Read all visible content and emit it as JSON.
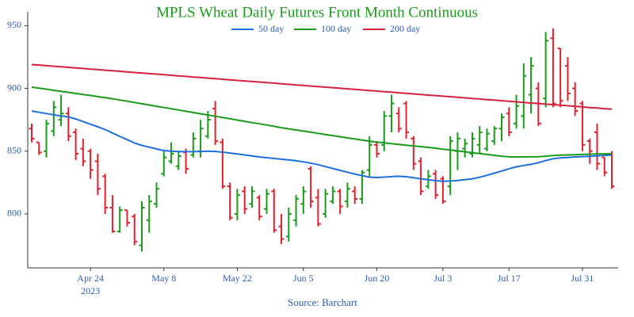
{
  "chart_data": {
    "type": "ohlc",
    "title": "MPLS Wheat Daily Futures Front Month Continuous",
    "source": "Source: Barchart",
    "year_label": "2023",
    "categories": [
      "Apr 12",
      "Apr 13",
      "Apr 14",
      "Apr 17",
      "Apr 18",
      "Apr 19",
      "Apr 20",
      "Apr 21",
      "Apr 24",
      "Apr 25",
      "Apr 26",
      "Apr 27",
      "Apr 28",
      "May 1",
      "May 2",
      "May 3",
      "May 4",
      "May 5",
      "May 8",
      "May 9",
      "May 10",
      "May 11",
      "May 12",
      "May 15",
      "May 16",
      "May 17",
      "May 18",
      "May 19",
      "May 22",
      "May 23",
      "May 24",
      "May 25",
      "May 26",
      "May 30",
      "May 31",
      "Jun 1",
      "Jun 2",
      "Jun 5",
      "Jun 6",
      "Jun 7",
      "Jun 8",
      "Jun 9",
      "Jun 12",
      "Jun 13",
      "Jun 14",
      "Jun 15",
      "Jun 16",
      "Jun 20",
      "Jun 21",
      "Jun 22",
      "Jun 23",
      "Jun 26",
      "Jun 27",
      "Jun 28",
      "Jun 29",
      "Jun 30",
      "Jul 3",
      "Jul 5",
      "Jul 6",
      "Jul 7",
      "Jul 10",
      "Jul 11",
      "Jul 12",
      "Jul 13",
      "Jul 14",
      "Jul 17",
      "Jul 18",
      "Jul 19",
      "Jul 20",
      "Jul 21",
      "Jul 24",
      "Jul 25",
      "Jul 26",
      "Jul 27",
      "Jul 28",
      "Jul 31",
      "Aug 1",
      "Aug 2",
      "Aug 3",
      "Aug 4"
    ],
    "xticks": [
      8,
      18,
      28,
      37,
      47,
      56,
      65,
      75
    ],
    "open": [
      868,
      857,
      850,
      866,
      875,
      880,
      865,
      852,
      850,
      842,
      830,
      805,
      786,
      803,
      798,
      775,
      795,
      808,
      832,
      842,
      838,
      849,
      847,
      850,
      862,
      884,
      857,
      822,
      800,
      818,
      808,
      813,
      804,
      818,
      790,
      782,
      795,
      808,
      836,
      813,
      800,
      810,
      818,
      810,
      818,
      812,
      835,
      855,
      855,
      878,
      880,
      888,
      860,
      842,
      822,
      832,
      828,
      822,
      850,
      852,
      848,
      855,
      852,
      858,
      868,
      880,
      872,
      878,
      895,
      900,
      892,
      940,
      932,
      918,
      900,
      888,
      858,
      865,
      845,
      848
    ],
    "high": [
      872,
      857,
      875,
      890,
      895,
      885,
      868,
      860,
      852,
      848,
      832,
      815,
      806,
      803,
      800,
      810,
      815,
      825,
      850,
      857,
      850,
      852,
      865,
      875,
      882,
      890,
      860,
      825,
      820,
      822,
      822,
      815,
      820,
      820,
      800,
      805,
      815,
      822,
      838,
      820,
      820,
      822,
      820,
      825,
      822,
      835,
      862,
      858,
      882,
      895,
      885,
      890,
      862,
      845,
      835,
      835,
      830,
      862,
      865,
      860,
      865,
      870,
      868,
      870,
      880,
      885,
      895,
      920,
      925,
      905,
      945,
      948,
      932,
      925,
      905,
      890,
      860,
      872,
      845,
      850
    ],
    "low": [
      857,
      847,
      845,
      862,
      870,
      858,
      843,
      838,
      828,
      815,
      800,
      785,
      785,
      790,
      775,
      770,
      785,
      805,
      830,
      840,
      835,
      832,
      845,
      845,
      860,
      855,
      820,
      795,
      795,
      800,
      805,
      795,
      800,
      785,
      776,
      778,
      790,
      800,
      805,
      790,
      797,
      808,
      800,
      805,
      808,
      808,
      830,
      845,
      850,
      865,
      865,
      860,
      835,
      815,
      820,
      812,
      808,
      815,
      835,
      845,
      845,
      848,
      850,
      855,
      858,
      862,
      868,
      868,
      880,
      870,
      885,
      885,
      885,
      890,
      878,
      850,
      840,
      835,
      830,
      820
    ],
    "close": [
      860,
      849,
      872,
      885,
      880,
      862,
      848,
      842,
      835,
      820,
      805,
      786,
      803,
      793,
      778,
      805,
      810,
      820,
      845,
      848,
      846,
      836,
      860,
      868,
      875,
      858,
      822,
      797,
      815,
      804,
      818,
      798,
      816,
      787,
      780,
      800,
      812,
      818,
      810,
      792,
      816,
      818,
      806,
      820,
      812,
      833,
      855,
      848,
      878,
      888,
      868,
      865,
      840,
      818,
      830,
      815,
      810,
      858,
      860,
      856,
      860,
      865,
      864,
      868,
      877,
      865,
      886,
      910,
      918,
      872,
      938,
      888,
      890,
      896,
      882,
      855,
      850,
      840,
      833,
      822
    ],
    "up_color": "#1a9c1a",
    "down_color": "#e3202c",
    "lines": [
      {
        "name": "50 day",
        "color": "#1e6fd9",
        "values": [
          882,
          881,
          880,
          879,
          878,
          877.3,
          875.7,
          873.6,
          871.5,
          869.4,
          867.2,
          864.5,
          861.8,
          859.2,
          856.5,
          854.6,
          853.2,
          851.8,
          850.5,
          850,
          849.7,
          849.6,
          849.6,
          849.8,
          850,
          849.8,
          849.2,
          848.5,
          847.8,
          847,
          846.2,
          845.4,
          844.8,
          844.2,
          843.6,
          843,
          842.3,
          841.5,
          840.5,
          839.2,
          837.7,
          836.2,
          834.7,
          833.2,
          831.8,
          830.5,
          829.3,
          829,
          829.3,
          829.7,
          830,
          829.6,
          828.8,
          828,
          827.2,
          826.5,
          826,
          826.2,
          826.6,
          827.2,
          828,
          829.2,
          830.8,
          832.5,
          834.2,
          836,
          837.5,
          838.6,
          839.5,
          840.8,
          842.5,
          844,
          844.6,
          845,
          845.4,
          845.7,
          846,
          846.3,
          846.6,
          847
        ]
      },
      {
        "name": "100 day",
        "color": "#1a9c1a",
        "values": [
          901,
          900.2,
          899.4,
          898.5,
          897.7,
          896.9,
          896,
          895.2,
          894.4,
          893.5,
          892.6,
          891.8,
          890.8,
          889.8,
          888.8,
          887.8,
          886.8,
          885.8,
          884.8,
          883.8,
          882.8,
          881.8,
          880.8,
          879.8,
          878.8,
          877.8,
          876.8,
          875.8,
          874.8,
          873.8,
          872.8,
          871.8,
          870.8,
          869.8,
          868.7,
          867.8,
          866.9,
          866,
          865.1,
          864.2,
          863.3,
          862.4,
          861.5,
          860.6,
          859.7,
          858.8,
          857.9,
          857.2,
          856.6,
          856,
          855.4,
          854.8,
          854.2,
          853.6,
          853,
          852.4,
          851.6,
          850.9,
          850.2,
          849.5,
          848.8,
          848.1,
          847.4,
          846.7,
          846,
          845.5,
          845.4,
          845.4,
          845.5,
          845.6,
          846,
          846.5,
          846.8,
          847,
          847.2,
          847.4,
          847.6,
          847.8,
          847.9,
          848
        ]
      },
      {
        "name": "200 day",
        "color": "#d62040",
        "values": [
          919.0,
          918.6,
          918.1,
          917.7,
          917.2,
          916.8,
          916.3,
          915.9,
          915.4,
          915.0,
          914.5,
          914.1,
          913.6,
          913.2,
          912.7,
          912.3,
          911.8,
          911.4,
          910.9,
          910.5,
          910.0,
          909.6,
          909.1,
          908.7,
          908.2,
          907.8,
          907.3,
          906.9,
          906.4,
          906.0,
          905.5,
          905.1,
          904.6,
          904.2,
          903.7,
          903.3,
          902.8,
          902.4,
          901.9,
          901.5,
          901.0,
          900.6,
          900.1,
          899.7,
          899.2,
          898.8,
          898.3,
          897.9,
          897.4,
          897.0,
          896.5,
          896.1,
          895.6,
          895.2,
          894.7,
          894.3,
          893.8,
          893.4,
          892.9,
          892.5,
          892.0,
          891.6,
          891.1,
          890.7,
          890.2,
          889.8,
          889.3,
          888.9,
          888.4,
          888.0,
          887.5,
          887.1,
          886.6,
          886.2,
          885.7,
          885.3,
          884.8,
          884.4,
          883.9,
          883.5
        ]
      }
    ],
    "ylim": [
      757,
      961
    ],
    "yticks": [
      800,
      850,
      900,
      950
    ],
    "grid": false
  }
}
